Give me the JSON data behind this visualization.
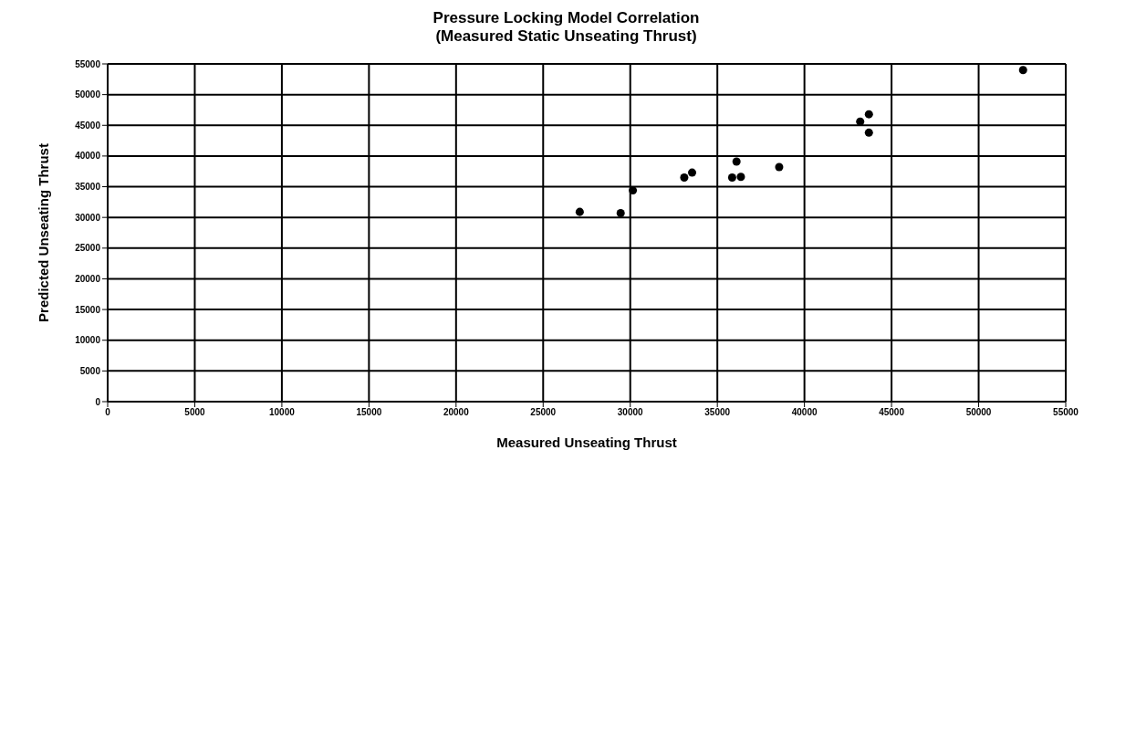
{
  "chart_data": {
    "type": "scatter",
    "title": "Pressure Locking Model Correlation",
    "subtitle": "(Measured Static Unseating Thrust)",
    "xlabel": "Measured Unseating Thrust",
    "ylabel": "Predicted Unseating Thrust",
    "x": [
      27100,
      29450,
      30150,
      33100,
      33550,
      35850,
      36100,
      36350,
      38550,
      43200,
      43700,
      43700,
      52550
    ],
    "series": [
      {
        "color": "#000000",
        "values": [
          30900,
          30700,
          34400,
          36500,
          37300,
          36500,
          39100,
          36600,
          38200,
          45600,
          46800,
          43800,
          54000
        ]
      }
    ],
    "xlim": [
      0,
      55000
    ],
    "xticks": [
      0,
      5000,
      10000,
      15000,
      20000,
      25000,
      30000,
      35000,
      40000,
      45000,
      50000,
      55000
    ],
    "ylim": [
      0,
      55000
    ],
    "yticks": [
      0,
      5000,
      10000,
      15000,
      20000,
      25000,
      30000,
      35000,
      40000,
      45000,
      50000,
      55000
    ],
    "grid": true,
    "marker": "circle",
    "legend": false
  }
}
